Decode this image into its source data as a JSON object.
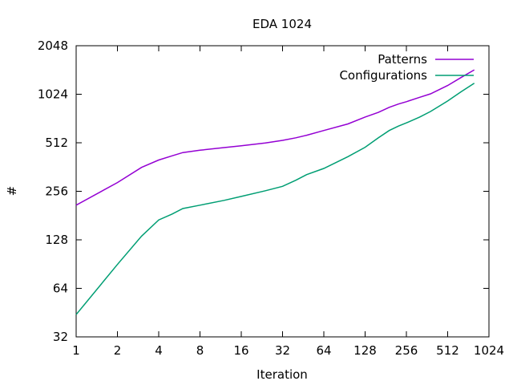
{
  "chart_data": {
    "type": "line",
    "title": "EDA 1024",
    "xlabel": "Iteration",
    "ylabel": "#",
    "x_scale": "log2",
    "y_scale": "log2",
    "xlim": [
      1,
      1024
    ],
    "ylim": [
      32,
      2048
    ],
    "x_ticks": [
      "1",
      "2",
      "4",
      "8",
      "16",
      "32",
      "64",
      "128",
      "256",
      "512",
      "1024"
    ],
    "y_ticks": [
      "32",
      "64",
      "128",
      "256",
      "512",
      "1024",
      "2048"
    ],
    "grid": false,
    "legend_position": "top-right",
    "series": [
      {
        "name": "Patterns",
        "color": "#9400d3",
        "points": [
          [
            1,
            210
          ],
          [
            2,
            290
          ],
          [
            3,
            360
          ],
          [
            4,
            400
          ],
          [
            5,
            425
          ],
          [
            6,
            445
          ],
          [
            8,
            460
          ],
          [
            12,
            478
          ],
          [
            16,
            490
          ],
          [
            24,
            510
          ],
          [
            32,
            530
          ],
          [
            40,
            550
          ],
          [
            48,
            570
          ],
          [
            64,
            610
          ],
          [
            96,
            670
          ],
          [
            128,
            740
          ],
          [
            160,
            790
          ],
          [
            192,
            850
          ],
          [
            224,
            890
          ],
          [
            256,
            920
          ],
          [
            320,
            980
          ],
          [
            384,
            1030
          ],
          [
            512,
            1160
          ],
          [
            640,
            1300
          ],
          [
            800,
            1450
          ]
        ]
      },
      {
        "name": "Configurations",
        "color": "#009e73",
        "points": [
          [
            1,
            44
          ],
          [
            2,
            90
          ],
          [
            3,
            135
          ],
          [
            4,
            170
          ],
          [
            5,
            185
          ],
          [
            6,
            200
          ],
          [
            8,
            210
          ],
          [
            12,
            225
          ],
          [
            16,
            238
          ],
          [
            24,
            258
          ],
          [
            32,
            275
          ],
          [
            40,
            300
          ],
          [
            48,
            325
          ],
          [
            64,
            355
          ],
          [
            96,
            420
          ],
          [
            128,
            480
          ],
          [
            160,
            550
          ],
          [
            192,
            610
          ],
          [
            224,
            650
          ],
          [
            256,
            680
          ],
          [
            320,
            740
          ],
          [
            384,
            800
          ],
          [
            512,
            930
          ],
          [
            640,
            1060
          ],
          [
            800,
            1200
          ]
        ]
      }
    ]
  }
}
